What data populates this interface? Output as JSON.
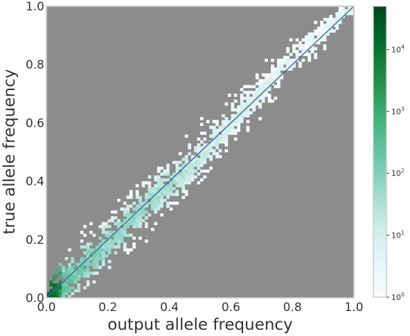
{
  "chart_data": {
    "type": "heatmap",
    "xlabel": "output allele frequency",
    "ylabel": "true allele frequency",
    "xlim": [
      0.0,
      1.0
    ],
    "ylim": [
      0.0,
      1.0
    ],
    "x_ticks": [
      "0.0",
      "0.2",
      "0.4",
      "0.6",
      "0.8",
      "1.0"
    ],
    "y_ticks": [
      "0.0",
      "0.2",
      "0.4",
      "0.6",
      "0.8",
      "1.0"
    ],
    "grid": false,
    "background_color": "#8c8c8c",
    "diagonal_line": {
      "from": [
        0.0,
        0.0
      ],
      "to": [
        1.0,
        1.0
      ],
      "color": "#3a6f9f"
    },
    "colorbar": {
      "scale": "log",
      "range": [
        1,
        50000
      ],
      "ticks": [
        {
          "value": 1,
          "base": "10",
          "exp": "0"
        },
        {
          "value": 10,
          "base": "10",
          "exp": "1"
        },
        {
          "value": 100,
          "base": "10",
          "exp": "2"
        },
        {
          "value": 1000,
          "base": "10",
          "exp": "3"
        },
        {
          "value": 10000,
          "base": "10",
          "exp": "4"
        }
      ],
      "colormap": [
        "#f7fcfd",
        "#e5f5f9",
        "#ccece6",
        "#99d8c9",
        "#66c2a4",
        "#41ae76",
        "#238b45",
        "#006d2c",
        "#00441b"
      ]
    },
    "density_band": [
      {
        "x": 0.0,
        "y": 0.0,
        "width": 0.03,
        "count": 40000
      },
      {
        "x": 0.05,
        "y": 0.04,
        "width": 0.06,
        "count": 300
      },
      {
        "x": 0.1,
        "y": 0.09,
        "width": 0.06,
        "count": 200
      },
      {
        "x": 0.2,
        "y": 0.19,
        "width": 0.06,
        "count": 80
      },
      {
        "x": 0.3,
        "y": 0.29,
        "width": 0.06,
        "count": 60
      },
      {
        "x": 0.4,
        "y": 0.39,
        "width": 0.06,
        "count": 40
      },
      {
        "x": 0.5,
        "y": 0.48,
        "width": 0.06,
        "count": 20
      },
      {
        "x": 0.6,
        "y": 0.6,
        "width": 0.05,
        "count": 10
      },
      {
        "x": 0.7,
        "y": 0.71,
        "width": 0.05,
        "count": 6
      },
      {
        "x": 0.8,
        "y": 0.82,
        "width": 0.04,
        "count": 4
      },
      {
        "x": 0.9,
        "y": 0.91,
        "width": 0.04,
        "count": 3
      },
      {
        "x": 0.98,
        "y": 0.99,
        "width": 0.02,
        "count": 10
      }
    ]
  }
}
